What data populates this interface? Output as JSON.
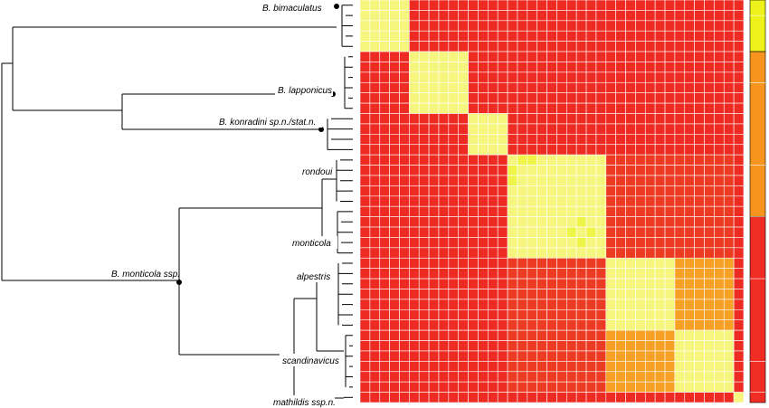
{
  "figure": {
    "clade_labels": {
      "bimaculatus": "B. bimaculatus",
      "lapponicus": "B. lapponicus",
      "konradini": "B. konradini sp.n./stat.n.",
      "rondoui": "rondoui",
      "monticola": "monticola",
      "monticola_ssp": "B. monticola ssp.",
      "alpestris": "alpestris",
      "scandinavicus": "scandinavicus",
      "mathildis": "mathildis ssp.n."
    },
    "colors": {
      "background_cell": "#ee2b23",
      "lower_cell": "#ec3a23",
      "orange_cell": "#f6a125",
      "yellow_cell": "#f6f57e",
      "bright_yellow_cell": "#eef548",
      "grid_line": "#ffffff",
      "sidebar_red": "#ef2d25",
      "sidebar_orange": "#f7941d",
      "sidebar_yellow": "#eef21a"
    }
  },
  "chart_data": {
    "type": "heatmap",
    "n_samples": 39,
    "description_of_values": "pairwise co-assignment similarity: 0 = red (low), 1 = orange (medium), 2 = yellow (high), 3 = bright yellow (highest)",
    "blocks": [
      {
        "group": "B. bimaculatus",
        "rows": [
          0,
          4
        ],
        "level": 2
      },
      {
        "group": "B. lapponicus",
        "rows": [
          5,
          10
        ],
        "level": 2
      },
      {
        "group": "B. konradini sp.n./stat.n.",
        "rows": [
          11,
          14
        ],
        "level": 2
      },
      {
        "group": "rondoui / monticola",
        "rows": [
          15,
          24
        ],
        "level": 2
      },
      {
        "group": "alpestris",
        "rows": [
          25,
          31
        ],
        "level": 2
      },
      {
        "group": "scandinavicus",
        "rows": [
          32,
          37
        ],
        "level": 2
      },
      {
        "group": "alpestris x scandinavicus",
        "rows": [
          25,
          37
        ],
        "level": 1
      },
      {
        "group": "mathildis ssp.n.",
        "rows": [
          38,
          38
        ],
        "level": 2
      }
    ],
    "sidebar_clusters": [
      {
        "rows": [
          0,
          4
        ],
        "color": "yellow"
      },
      {
        "rows": [
          5,
          20
        ],
        "color": "orange"
      },
      {
        "rows": [
          21,
          38
        ],
        "color": "red"
      }
    ]
  }
}
